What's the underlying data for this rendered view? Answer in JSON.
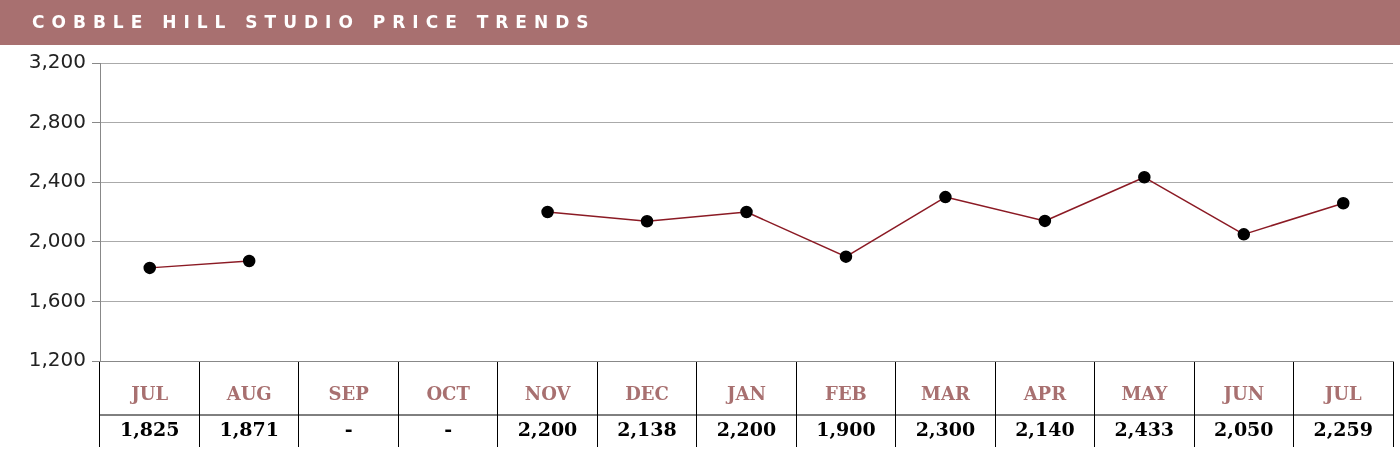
{
  "chart_data": {
    "type": "line",
    "title": "COBBLE HILL STUDIO PRICE TRENDS",
    "categories": [
      "JUL",
      "AUG",
      "SEP",
      "OCT",
      "NOV",
      "DEC",
      "JAN",
      "FEB",
      "MAR",
      "APR",
      "MAY",
      "JUN",
      "JUL"
    ],
    "series": [
      {
        "color": "#8b1a24",
        "values": [
          1825,
          1871,
          null,
          null,
          2200,
          2138,
          2200,
          1900,
          2300,
          2140,
          2433,
          2050,
          2259
        ],
        "value_labels": [
          "1,825",
          "1,871",
          "-",
          "-",
          "2,200",
          "2,138",
          "2,200",
          "1,900",
          "2,300",
          "2,140",
          "2,433",
          "2,050",
          "2,259"
        ]
      }
    ],
    "ylim": [
      1200,
      3200
    ],
    "yticks": [
      {
        "value": 1200,
        "label": "1,200"
      },
      {
        "value": 1600,
        "label": "1,600"
      },
      {
        "value": 2000,
        "label": "2,000"
      },
      {
        "value": 2400,
        "label": "2,400"
      },
      {
        "value": 2800,
        "label": "2,800"
      },
      {
        "value": 3200,
        "label": "3,200"
      }
    ],
    "grid": "y",
    "legend": false,
    "marker": "circle",
    "line_style": "solid"
  }
}
